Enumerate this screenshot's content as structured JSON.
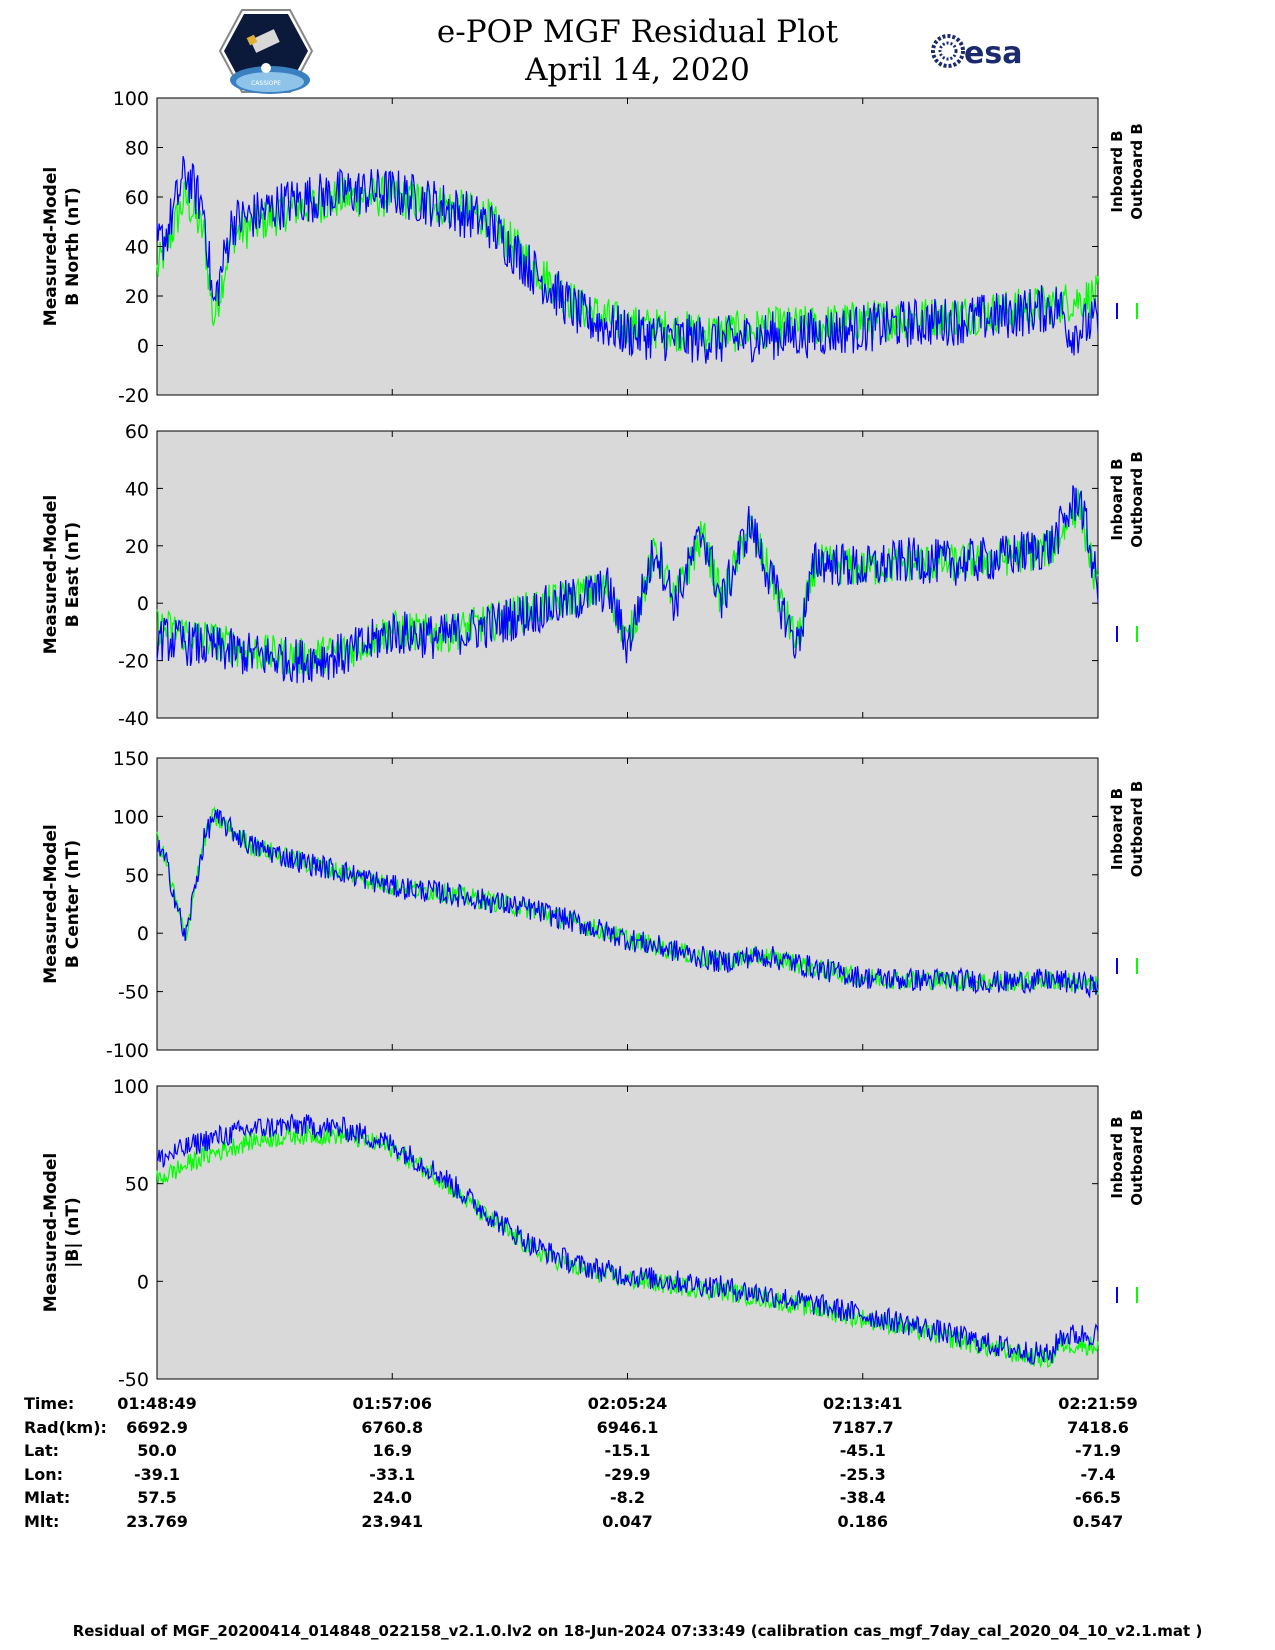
{
  "header": {
    "title_line1": "e-POP MGF Residual Plot",
    "title_line2": "April 14, 2020",
    "left_logo": "CASSIOPE",
    "right_logo": "esa"
  },
  "colors": {
    "inboard": "#0000ff",
    "outboard": "#00ff00",
    "plot_bg": "#d9d9d9"
  },
  "legend": {
    "inboard": "Inboard B",
    "outboard": "Outboard B"
  },
  "chart_data": [
    {
      "type": "line",
      "ylabel": "Measured-Model\nB North (nT)",
      "ylim": [
        -20,
        100
      ],
      "yticks": [
        -20,
        0,
        20,
        40,
        60,
        80,
        100
      ],
      "x": [
        0,
        0.01,
        0.03,
        0.05,
        0.06,
        0.08,
        0.1,
        0.14,
        0.2,
        0.25,
        0.3,
        0.35,
        0.4,
        0.45,
        0.5,
        0.55,
        0.6,
        0.65,
        0.7,
        0.75,
        0.8,
        0.85,
        0.9,
        0.96,
        0.97,
        1.0
      ],
      "series": [
        {
          "name": "Inboard B",
          "values": [
            40,
            45,
            70,
            55,
            15,
            50,
            52,
            58,
            62,
            62,
            57,
            50,
            30,
            12,
            5,
            3,
            2,
            4,
            5,
            7,
            9,
            10,
            12,
            16,
            5,
            10
          ]
        },
        {
          "name": "Outboard B",
          "values": [
            30,
            40,
            60,
            45,
            10,
            45,
            48,
            55,
            60,
            60,
            57,
            52,
            32,
            15,
            8,
            6,
            5,
            7,
            8,
            10,
            11,
            12,
            14,
            17,
            18,
            20
          ]
        }
      ]
    },
    {
      "type": "line",
      "ylabel": "Measured-Model\nB East (nT)",
      "ylim": [
        -40,
        60
      ],
      "yticks": [
        -40,
        -20,
        0,
        20,
        40,
        60
      ],
      "x": [
        0,
        0.05,
        0.1,
        0.15,
        0.2,
        0.25,
        0.3,
        0.35,
        0.4,
        0.45,
        0.48,
        0.5,
        0.53,
        0.55,
        0.58,
        0.6,
        0.63,
        0.65,
        0.68,
        0.7,
        0.75,
        0.8,
        0.85,
        0.9,
        0.95,
        0.98,
        1.0
      ],
      "series": [
        {
          "name": "Inboard B",
          "values": [
            -12,
            -15,
            -18,
            -20,
            -18,
            -10,
            -12,
            -8,
            -3,
            2,
            5,
            -15,
            20,
            0,
            25,
            0,
            28,
            10,
            -15,
            15,
            12,
            15,
            14,
            16,
            20,
            38,
            5
          ]
        },
        {
          "name": "Outboard B",
          "values": [
            -8,
            -12,
            -17,
            -19,
            -17,
            -9,
            -11,
            -7,
            -2,
            3,
            5,
            -14,
            19,
            1,
            24,
            1,
            27,
            11,
            -14,
            14,
            12,
            14,
            14,
            16,
            19,
            35,
            3
          ]
        }
      ]
    },
    {
      "type": "line",
      "ylabel": "Measured-Model\nB Center (nT)",
      "ylim": [
        -100,
        150
      ],
      "yticks": [
        -100,
        -50,
        0,
        50,
        100,
        150
      ],
      "x": [
        0,
        0.01,
        0.03,
        0.05,
        0.06,
        0.1,
        0.15,
        0.2,
        0.25,
        0.3,
        0.35,
        0.4,
        0.45,
        0.5,
        0.55,
        0.6,
        0.63,
        0.65,
        0.7,
        0.75,
        0.8,
        0.85,
        0.9,
        0.95,
        1.0
      ],
      "series": [
        {
          "name": "Inboard B",
          "values": [
            75,
            60,
            -5,
            80,
            100,
            75,
            62,
            52,
            40,
            35,
            28,
            20,
            8,
            -5,
            -15,
            -25,
            -20,
            -20,
            -30,
            -38,
            -40,
            -40,
            -42,
            -40,
            -45
          ]
        },
        {
          "name": "Outboard B",
          "values": [
            80,
            60,
            -5,
            80,
            100,
            75,
            62,
            52,
            40,
            35,
            28,
            20,
            8,
            -5,
            -15,
            -25,
            -20,
            -20,
            -30,
            -38,
            -40,
            -40,
            -42,
            -40,
            -45
          ]
        }
      ]
    },
    {
      "type": "line",
      "ylabel": "Measured-Model\n|B| (nT)",
      "ylim": [
        -50,
        100
      ],
      "yticks": [
        -50,
        0,
        50,
        100
      ],
      "x": [
        0,
        0.05,
        0.1,
        0.15,
        0.2,
        0.25,
        0.3,
        0.35,
        0.4,
        0.45,
        0.5,
        0.55,
        0.6,
        0.65,
        0.7,
        0.75,
        0.8,
        0.85,
        0.9,
        0.95,
        0.96,
        1.0
      ],
      "series": [
        {
          "name": "Inboard B",
          "values": [
            62,
            72,
            78,
            80,
            78,
            70,
            55,
            35,
            18,
            8,
            3,
            0,
            -3,
            -7,
            -12,
            -17,
            -22,
            -28,
            -34,
            -38,
            -28,
            -27
          ]
        },
        {
          "name": "Outboard B",
          "values": [
            52,
            64,
            72,
            75,
            75,
            68,
            53,
            33,
            16,
            6,
            1,
            -2,
            -5,
            -9,
            -14,
            -19,
            -24,
            -30,
            -36,
            -40,
            -32,
            -33
          ]
        }
      ]
    }
  ],
  "info": {
    "labels": [
      "Time:",
      "Rad(km):",
      "Lat:",
      "Lon:",
      "Mlat:",
      "Mlt:"
    ],
    "columns": [
      {
        "Time": "01:48:49",
        "Rad": "6692.9",
        "Lat": "50.0",
        "Lon": "-39.1",
        "Mlat": "57.5",
        "Mlt": "23.769"
      },
      {
        "Time": "01:57:06",
        "Rad": "6760.8",
        "Lat": "16.9",
        "Lon": "-33.1",
        "Mlat": "24.0",
        "Mlt": "23.941"
      },
      {
        "Time": "02:05:24",
        "Rad": "6946.1",
        "Lat": "-15.1",
        "Lon": "-29.9",
        "Mlat": "-8.2",
        "Mlt": "0.047"
      },
      {
        "Time": "02:13:41",
        "Rad": "7187.7",
        "Lat": "-45.1",
        "Lon": "-25.3",
        "Mlat": "-38.4",
        "Mlt": "0.186"
      },
      {
        "Time": "02:21:59",
        "Rad": "7418.6",
        "Lat": "-71.9",
        "Lon": "-7.4",
        "Mlat": "-66.5",
        "Mlt": "0.547"
      }
    ]
  },
  "footer": "Residual of MGF_20200414_014848_022158_v2.1.0.lv2 on 18-Jun-2024 07:33:49 (calibration cas_mgf_7day_cal_2020_04_10_v2.1.mat )"
}
